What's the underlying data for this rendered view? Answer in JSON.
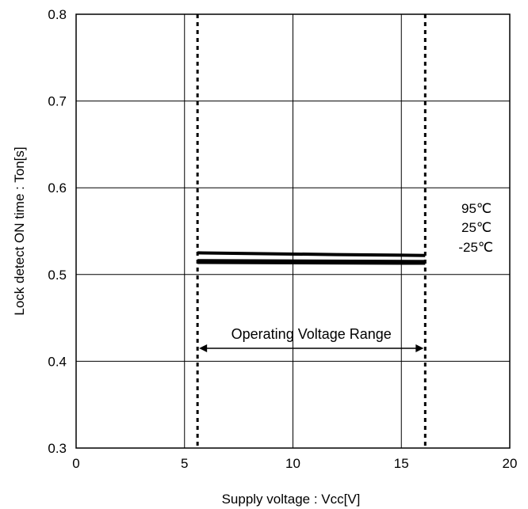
{
  "chart_data": {
    "type": "line",
    "title": "",
    "xlabel": "Supply voltage : Vcc[V]",
    "ylabel": "Lock detect ON time : Ton[s]",
    "xlim": [
      0,
      20
    ],
    "ylim": [
      0.3,
      0.8
    ],
    "xticks": [
      0,
      5,
      10,
      15,
      20
    ],
    "xtick_labels": [
      "0",
      "5",
      "10",
      "15",
      "20"
    ],
    "yticks": [
      0.3,
      0.4,
      0.5,
      0.6,
      0.7,
      0.8
    ],
    "ytick_labels": [
      "0.3",
      "0.4",
      "0.5",
      "0.6",
      "0.7",
      "0.8"
    ],
    "grid": true,
    "series": [
      {
        "name": "95℃",
        "x": [
          5.6,
          12.0,
          16.1
        ],
        "y": [
          0.525,
          0.523,
          0.522
        ]
      },
      {
        "name": "25℃",
        "x": [
          5.6,
          16.1
        ],
        "y": [
          0.516,
          0.515
        ]
      },
      {
        "name": "-25℃",
        "x": [
          5.6,
          16.1
        ],
        "y": [
          0.514,
          0.513
        ]
      }
    ],
    "legend_labels": [
      "95℃",
      "25℃",
      "-25℃"
    ],
    "legend_position": "right",
    "vlines": [
      5.6,
      16.1
    ],
    "annotation": {
      "text": "Operating Voltage Range",
      "x_start": 5.6,
      "x_end": 16.1,
      "y": 0.415
    }
  }
}
